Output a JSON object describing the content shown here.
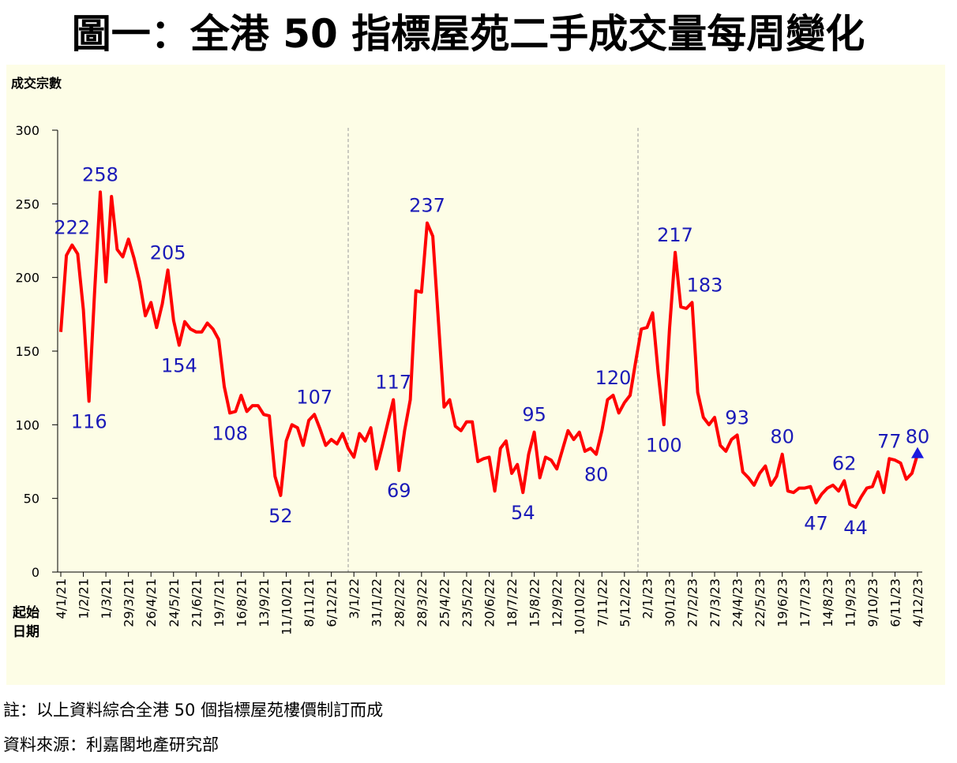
{
  "chart_data": {
    "type": "line",
    "title": "圖一：全港 50 指標屋苑二手成交量每周變化",
    "y_label": "成交宗數",
    "x_label": [
      "起始",
      "日期"
    ],
    "notes": [
      "註：以上資料綜合全港 50 個指標屋苑樓價制訂而成",
      "資料來源：利嘉閣地產研究部"
    ],
    "categories": [
      "4/1/21",
      null,
      null,
      null,
      "1/2/21",
      null,
      null,
      null,
      "1/3/21",
      null,
      null,
      null,
      "29/3/21",
      null,
      null,
      null,
      "26/4/21",
      null,
      null,
      null,
      "24/5/21",
      null,
      null,
      null,
      "21/6/21",
      null,
      null,
      null,
      "19/7/21",
      null,
      null,
      null,
      "16/8/21",
      null,
      null,
      null,
      "13/9/21",
      null,
      null,
      null,
      "11/10/21",
      null,
      null,
      null,
      "8/11/21",
      null,
      null,
      null,
      "6/12/21",
      null,
      null,
      null,
      "3/1/22",
      null,
      null,
      null,
      "31/1/22",
      null,
      null,
      null,
      "28/2/22",
      null,
      null,
      null,
      "28/3/22",
      null,
      null,
      null,
      "25/4/22",
      null,
      null,
      null,
      "23/5/22",
      null,
      null,
      null,
      "20/6/22",
      null,
      null,
      null,
      "18/7/22",
      null,
      null,
      null,
      "15/8/22",
      null,
      null,
      null,
      "12/9/22",
      null,
      null,
      null,
      "10/10/22",
      null,
      null,
      null,
      "7/11/22",
      null,
      null,
      null,
      "5/12/22",
      null,
      null,
      null,
      "2/1/23",
      null,
      null,
      null,
      "30/1/23",
      null,
      null,
      null,
      "27/2/23",
      null,
      null,
      null,
      "27/3/23",
      null,
      null,
      null,
      "24/4/23",
      null,
      null,
      null,
      "22/5/23",
      null,
      null,
      null,
      "19/6/23",
      null,
      null,
      null,
      "17/7/23",
      null,
      null,
      null,
      "14/8/23",
      null,
      null,
      null,
      "11/9/23",
      null,
      null,
      null,
      "9/10/23",
      null,
      null,
      null,
      "6/11/23",
      null,
      null,
      null,
      "4/12/23"
    ],
    "values": [
      163,
      215,
      222,
      216,
      178,
      116,
      190,
      258,
      197,
      255,
      219,
      214,
      226,
      213,
      197,
      174,
      183,
      166,
      182,
      205,
      171,
      154,
      170,
      165,
      163,
      163,
      169,
      165,
      158,
      126,
      108,
      109,
      120,
      109,
      113,
      113,
      107,
      106,
      65,
      52,
      89,
      100,
      98,
      86,
      103,
      107,
      97,
      86,
      90,
      87,
      94,
      84,
      78,
      94,
      89,
      98,
      70,
      85,
      101,
      117,
      69,
      96,
      117,
      191,
      190,
      237,
      228,
      170,
      112,
      117,
      99,
      96,
      102,
      102,
      75,
      77,
      78,
      55,
      84,
      89,
      67,
      73,
      54,
      80,
      95,
      64,
      78,
      76,
      70,
      83,
      96,
      90,
      95,
      82,
      84,
      80,
      96,
      117,
      120,
      108,
      115,
      120,
      143,
      165,
      166,
      176,
      135,
      100,
      165,
      217,
      180,
      179,
      183,
      122,
      105,
      100,
      105,
      86,
      82,
      90,
      93,
      68,
      64,
      59,
      67,
      72,
      59,
      65,
      80,
      55,
      54,
      57,
      57,
      58,
      47,
      53,
      57,
      59,
      55,
      62,
      46,
      44,
      51,
      57,
      58,
      68,
      54,
      77,
      76,
      74,
      63,
      67,
      80
    ],
    "value_labels": [
      null,
      null,
      "222",
      null,
      null,
      "116",
      null,
      "258",
      null,
      null,
      null,
      null,
      null,
      null,
      null,
      null,
      null,
      null,
      null,
      "205",
      null,
      "154",
      null,
      null,
      null,
      null,
      null,
      null,
      null,
      null,
      "108",
      null,
      null,
      null,
      null,
      null,
      null,
      null,
      null,
      "52",
      null,
      null,
      null,
      null,
      null,
      "107",
      null,
      null,
      null,
      null,
      null,
      null,
      null,
      null,
      null,
      null,
      null,
      null,
      null,
      "117",
      "69",
      null,
      null,
      null,
      null,
      "237",
      null,
      null,
      null,
      null,
      null,
      null,
      null,
      null,
      null,
      null,
      null,
      null,
      null,
      null,
      null,
      null,
      "54",
      null,
      "95",
      null,
      null,
      null,
      null,
      null,
      null,
      null,
      null,
      null,
      null,
      "80",
      null,
      null,
      "120",
      null,
      null,
      null,
      null,
      null,
      null,
      null,
      null,
      "100",
      null,
      "217",
      null,
      null,
      "183",
      null,
      null,
      null,
      null,
      null,
      null,
      null,
      "93",
      null,
      null,
      null,
      null,
      null,
      null,
      null,
      "80",
      null,
      null,
      null,
      null,
      null,
      "47",
      null,
      null,
      null,
      null,
      "62",
      null,
      "44",
      null,
      null,
      null,
      null,
      null,
      "77",
      null,
      null,
      null,
      null,
      "80"
    ],
    "color": "#ff0000",
    "label_color": "#1a1ab8",
    "background": "#fdfde6",
    "ylim": [
      0,
      300
    ],
    "yticks": [
      0,
      50,
      100,
      150,
      200,
      250,
      300
    ]
  }
}
